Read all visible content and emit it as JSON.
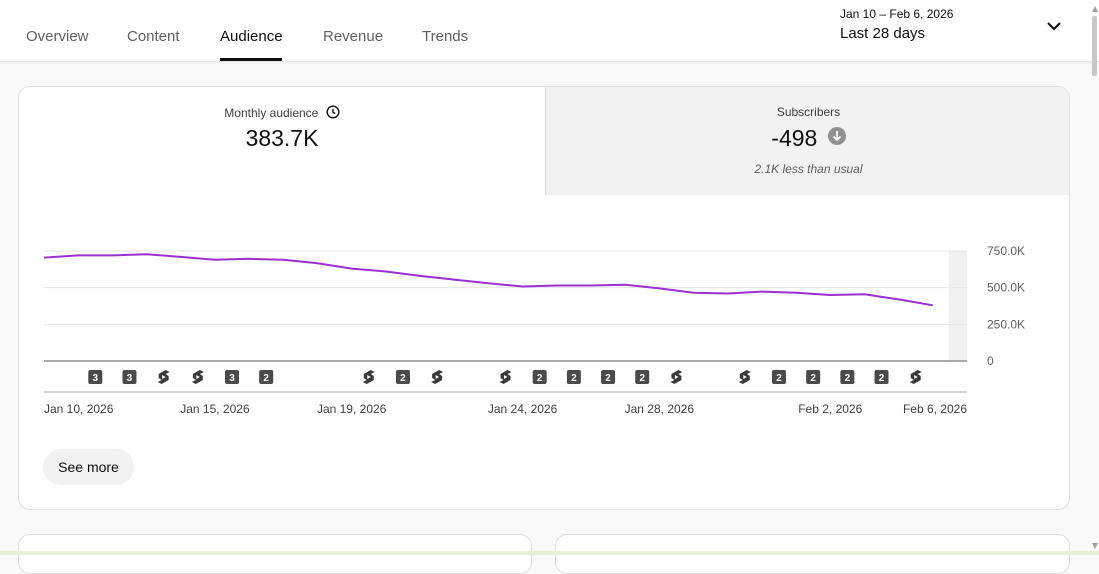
{
  "tabs": [
    {
      "label": "Overview",
      "active": false
    },
    {
      "label": "Content",
      "active": false
    },
    {
      "label": "Audience",
      "active": true
    },
    {
      "label": "Revenue",
      "active": false
    },
    {
      "label": "Trends",
      "active": false
    }
  ],
  "date_picker": {
    "range": "Jan 10 – Feb 6, 2026",
    "label": "Last 28 days"
  },
  "metrics": {
    "monthly_audience": {
      "label": "Monthly audience",
      "value": "383.7K",
      "icon": "clock-icon"
    },
    "subscribers": {
      "label": "Subscribers",
      "value": "-498",
      "sub": "2.1K less than usual",
      "icon": "arrow-down-circle-icon"
    }
  },
  "see_more_label": "See more",
  "colors": {
    "line": "#9b30d0",
    "accent": "#0f0f0f"
  },
  "chart_data": {
    "type": "line",
    "x": [
      "Jan 10",
      "Jan 11",
      "Jan 12",
      "Jan 13",
      "Jan 14",
      "Jan 15",
      "Jan 16",
      "Jan 17",
      "Jan 18",
      "Jan 19",
      "Jan 20",
      "Jan 21",
      "Jan 22",
      "Jan 23",
      "Jan 24",
      "Jan 25",
      "Jan 26",
      "Jan 27",
      "Jan 28",
      "Jan 29",
      "Jan 30",
      "Jan 31",
      "Feb 1",
      "Feb 2",
      "Feb 3",
      "Feb 4",
      "Feb 5",
      "Feb 6"
    ],
    "values": [
      705000,
      720000,
      720000,
      728000,
      710000,
      690000,
      697000,
      690000,
      667000,
      630000,
      610000,
      580000,
      555000,
      530000,
      508000,
      515000,
      515000,
      520000,
      495000,
      465000,
      460000,
      473000,
      465000,
      450000,
      455000,
      420000,
      380000,
      380000
    ],
    "ylim": [
      0,
      750000
    ],
    "y_ticks": [
      "750.0K",
      "500.0K",
      "250.0K",
      "0"
    ],
    "x_tick_labels": [
      "Jan 10, 2026",
      "Jan 15, 2026",
      "Jan 19, 2026",
      "Jan 24, 2026",
      "Jan 28, 2026",
      "Feb 2, 2026",
      "Feb 6, 2026"
    ],
    "grid": true,
    "markers": [
      {
        "day": "Jan 11",
        "kind": "count",
        "label": "3"
      },
      {
        "day": "Jan 12",
        "kind": "count",
        "label": "3"
      },
      {
        "day": "Jan 13",
        "kind": "shorts"
      },
      {
        "day": "Jan 14",
        "kind": "shorts"
      },
      {
        "day": "Jan 15",
        "kind": "count",
        "label": "3"
      },
      {
        "day": "Jan 16",
        "kind": "count",
        "label": "2"
      },
      {
        "day": "Jan 19",
        "kind": "shorts"
      },
      {
        "day": "Jan 20",
        "kind": "count",
        "label": "2"
      },
      {
        "day": "Jan 21",
        "kind": "shorts"
      },
      {
        "day": "Jan 23",
        "kind": "shorts"
      },
      {
        "day": "Jan 24",
        "kind": "count",
        "label": "2"
      },
      {
        "day": "Jan 25",
        "kind": "count",
        "label": "2"
      },
      {
        "day": "Jan 26",
        "kind": "count",
        "label": "2"
      },
      {
        "day": "Jan 27",
        "kind": "count",
        "label": "2"
      },
      {
        "day": "Jan 28",
        "kind": "shorts"
      },
      {
        "day": "Jan 30",
        "kind": "shorts"
      },
      {
        "day": "Jan 31",
        "kind": "count",
        "label": "2"
      },
      {
        "day": "Feb 1",
        "kind": "count",
        "label": "2"
      },
      {
        "day": "Feb 2",
        "kind": "count",
        "label": "2"
      },
      {
        "day": "Feb 3",
        "kind": "count",
        "label": "2"
      },
      {
        "day": "Feb 4",
        "kind": "shorts"
      }
    ]
  }
}
